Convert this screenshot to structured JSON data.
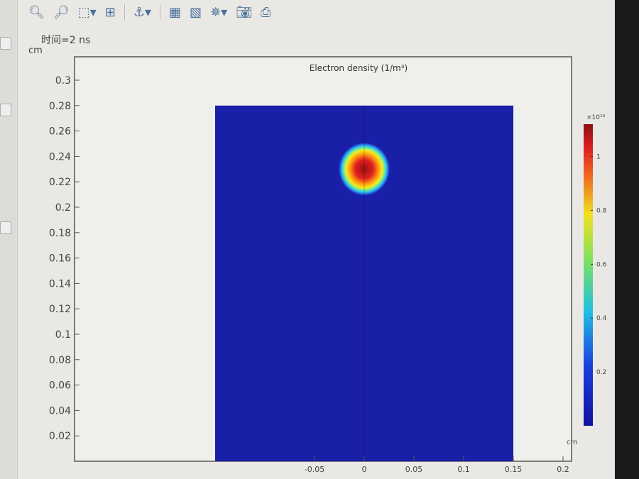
{
  "toolbar": {
    "icons": [
      "zoom-in-icon",
      "zoom-out-icon",
      "zoom-box-icon",
      "zoom-extents-icon",
      "axis-orientation-icon",
      "table-icon",
      "colorbar-icon",
      "scene-light-icon",
      "camera-icon",
      "print-icon"
    ]
  },
  "plot": {
    "time_label": "时间=2 ns",
    "y_unit": "cm",
    "x_unit": "cm"
  },
  "chart_data": {
    "type": "heatmap",
    "title": "Electron density (1/m³)",
    "xlabel": "cm",
    "ylabel": "cm",
    "x_ticks": [
      "-0.05",
      "0",
      "0.05",
      "0.1",
      "0.15",
      "0.2"
    ],
    "y_ticks": [
      "0.02",
      "0.04",
      "0.06",
      "0.08",
      "0.1",
      "0.12",
      "0.14",
      "0.16",
      "0.18",
      "0.2",
      "0.22",
      "0.24",
      "0.26",
      "0.28",
      "0.3"
    ],
    "domain": {
      "x": [
        -0.15,
        0.15
      ],
      "y": [
        0,
        0.28
      ]
    },
    "colorbar": {
      "multiplier": "×10¹³",
      "ticks": [
        "0.2",
        "0.4",
        "0.6",
        "0.8",
        "1"
      ],
      "range": [
        0,
        1.12
      ],
      "colormap": "jet"
    },
    "peak": {
      "x": 0,
      "y": 0.23,
      "radius": 0.025,
      "value": 1.1
    },
    "background_value": 0.05,
    "colors": {
      "low": "#1a1fa8",
      "high": "#b01818"
    }
  }
}
